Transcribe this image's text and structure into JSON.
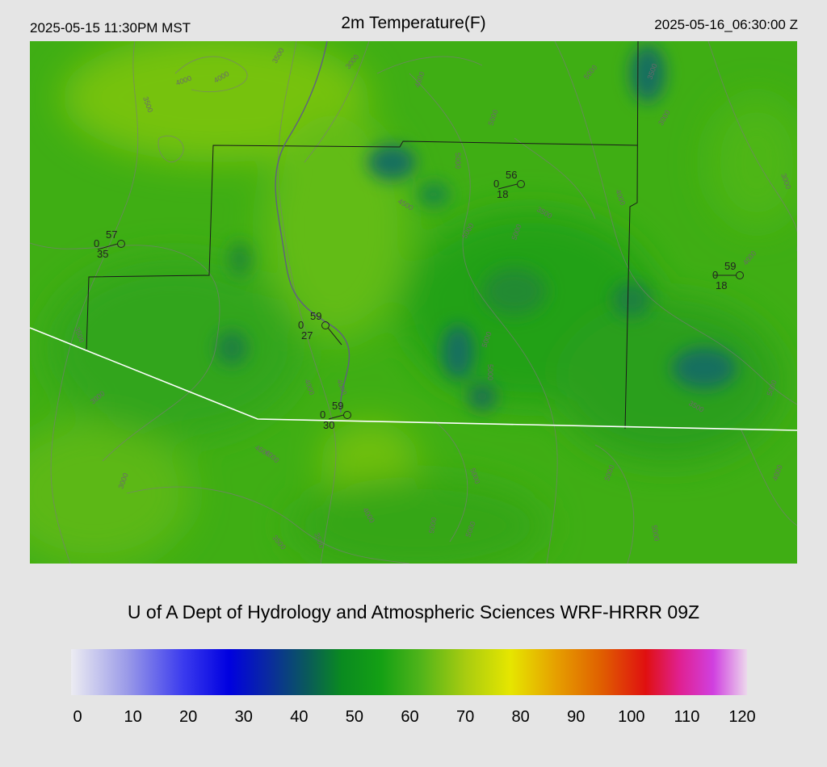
{
  "header": {
    "local_time": "2025-05-15 11:30PM MST",
    "title": "2m Temperature(F)",
    "utc_time": "2025-05-16_06:30:00 Z"
  },
  "credit": "U of A Dept of Hydrology and Atmospheric Sciences WRF-HRRR 09Z",
  "colorbar": {
    "min": 0,
    "max": 120,
    "ticks": [
      "0",
      "10",
      "20",
      "30",
      "40",
      "50",
      "60",
      "70",
      "80",
      "90",
      "100",
      "110",
      "120"
    ],
    "stops": [
      {
        "value": 0,
        "color": "#ececf2"
      },
      {
        "value": 10,
        "color": "#9a9ae8"
      },
      {
        "value": 20,
        "color": "#3a3aee"
      },
      {
        "value": 28,
        "color": "#0000e0"
      },
      {
        "value": 35,
        "color": "#0a2aa0"
      },
      {
        "value": 42,
        "color": "#0a5a5a"
      },
      {
        "value": 48,
        "color": "#0a8a20"
      },
      {
        "value": 55,
        "color": "#14a014"
      },
      {
        "value": 62,
        "color": "#50b41a"
      },
      {
        "value": 70,
        "color": "#a8cc10"
      },
      {
        "value": 78,
        "color": "#e6e600"
      },
      {
        "value": 86,
        "color": "#e6a000"
      },
      {
        "value": 94,
        "color": "#e06000"
      },
      {
        "value": 102,
        "color": "#e01010"
      },
      {
        "value": 108,
        "color": "#e02090"
      },
      {
        "value": 114,
        "color": "#d040e0"
      },
      {
        "value": 120,
        "color": "#ecd8ec"
      }
    ]
  },
  "stations": [
    {
      "temp": "57",
      "wind": "0",
      "dew": "35"
    },
    {
      "temp": "56",
      "wind": "0",
      "dew": "18"
    },
    {
      "temp": "59",
      "wind": "0",
      "dew": "18"
    },
    {
      "temp": "59",
      "wind": "0",
      "dew": "27"
    },
    {
      "temp": "59",
      "wind": "0",
      "dew": "30"
    }
  ],
  "contour_labels": [
    "3500",
    "4000",
    "4000",
    "3500",
    "3000",
    "4000",
    "5000",
    "5000",
    "3500",
    "3000",
    "5000",
    "5000",
    "4000",
    "3500",
    "4000",
    "3000",
    "5000",
    "4500",
    "3500",
    "5000",
    "4000",
    "5000",
    "3000",
    "4500",
    "3500",
    "4000",
    "4000",
    "5000",
    "5000",
    "4000",
    "3500",
    "3500",
    "5000",
    "5000",
    "3000",
    "5000",
    "4000",
    "5000"
  ]
}
